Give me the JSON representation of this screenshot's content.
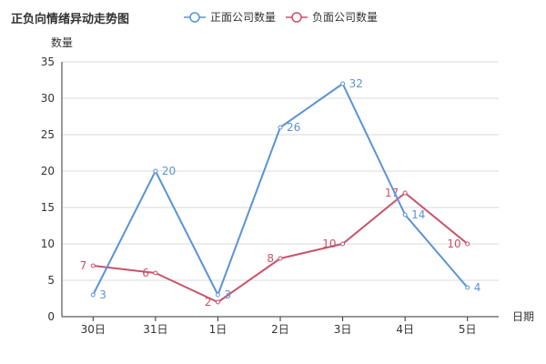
{
  "chart_data": {
    "type": "line",
    "title": "正负向情绪异动走势图",
    "xlabel": "日期",
    "ylabel": "数量",
    "categories": [
      "30日",
      "31日",
      "1日",
      "2日",
      "3日",
      "4日",
      "5日"
    ],
    "ylim": [
      0,
      35
    ],
    "yticks": [
      0,
      5,
      10,
      15,
      20,
      25,
      30,
      35
    ],
    "grid": true,
    "legend_position": "top",
    "series": [
      {
        "name": "正面公司数量",
        "color": "#5b93d5",
        "values": [
          3,
          20,
          3,
          26,
          32,
          14,
          4
        ]
      },
      {
        "name": "负面公司数量",
        "color": "#c8526a",
        "values": [
          7,
          6,
          2,
          8,
          10,
          17,
          10
        ]
      }
    ]
  }
}
